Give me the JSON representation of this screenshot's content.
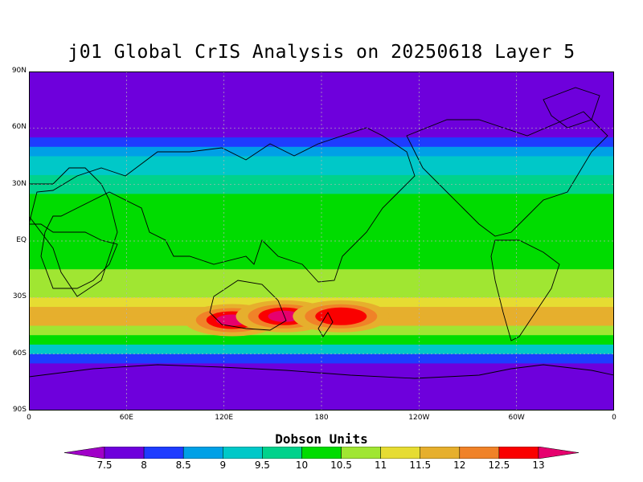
{
  "title": "j01 Global CrIS Analysis on 20250618 Layer 5",
  "units_label": "Dobson Units",
  "y_ticks": [
    "90N",
    "60N",
    "30N",
    "EQ",
    "30S",
    "60S",
    "90S"
  ],
  "x_ticks": [
    "0",
    "60E",
    "120E",
    "180",
    "120W",
    "60W",
    "0"
  ],
  "colorbar": {
    "levels": [
      "7.5",
      "8",
      "8.5",
      "9",
      "9.5",
      "10",
      "10.5",
      "11",
      "11.5",
      "12",
      "12.5",
      "13"
    ],
    "colors": [
      "#a000c8",
      "#6e00dc",
      "#1e3cff",
      "#00a0e6",
      "#00c8c8",
      "#00d28c",
      "#00dc00",
      "#a0e632",
      "#e6dc32",
      "#e6af2d",
      "#f08228",
      "#fa0000",
      "#e6006e"
    ]
  },
  "chart_data": {
    "type": "heatmap",
    "title": "j01 Global CrIS Analysis on 20250618 Layer 5",
    "xlabel": "",
    "ylabel": "",
    "colorbar_label": "Dobson Units",
    "lon_range": [
      0,
      360
    ],
    "lat_range": [
      -90,
      90
    ],
    "grid": true,
    "zonal_profile": {
      "lat": [
        90,
        75,
        65,
        60,
        55,
        50,
        45,
        40,
        35,
        30,
        25,
        20,
        15,
        10,
        5,
        0,
        -5,
        -10,
        -15,
        -20,
        -25,
        -30,
        -35,
        -40,
        -45,
        -50,
        -55,
        -60,
        -65,
        -70,
        -80,
        -90
      ],
      "value_DU": [
        7.5,
        7.5,
        7.5,
        7.7,
        8.2,
        8.7,
        9.1,
        9.3,
        9.5,
        9.8,
        10.0,
        10.1,
        10.1,
        10.0,
        10.0,
        10.0,
        10.1,
        10.2,
        10.4,
        10.6,
        10.8,
        11.0,
        11.4,
        11.8,
        11.3,
        10.5,
        9.6,
        8.8,
        8.0,
        7.6,
        7.5,
        7.5
      ]
    },
    "maxima": [
      {
        "lon": 125,
        "lat": -42,
        "value_DU": 13.0
      },
      {
        "lon": 157,
        "lat": -40,
        "value_DU": 13.0
      },
      {
        "lon": 192,
        "lat": -40,
        "value_DU": 12.8
      }
    ]
  }
}
